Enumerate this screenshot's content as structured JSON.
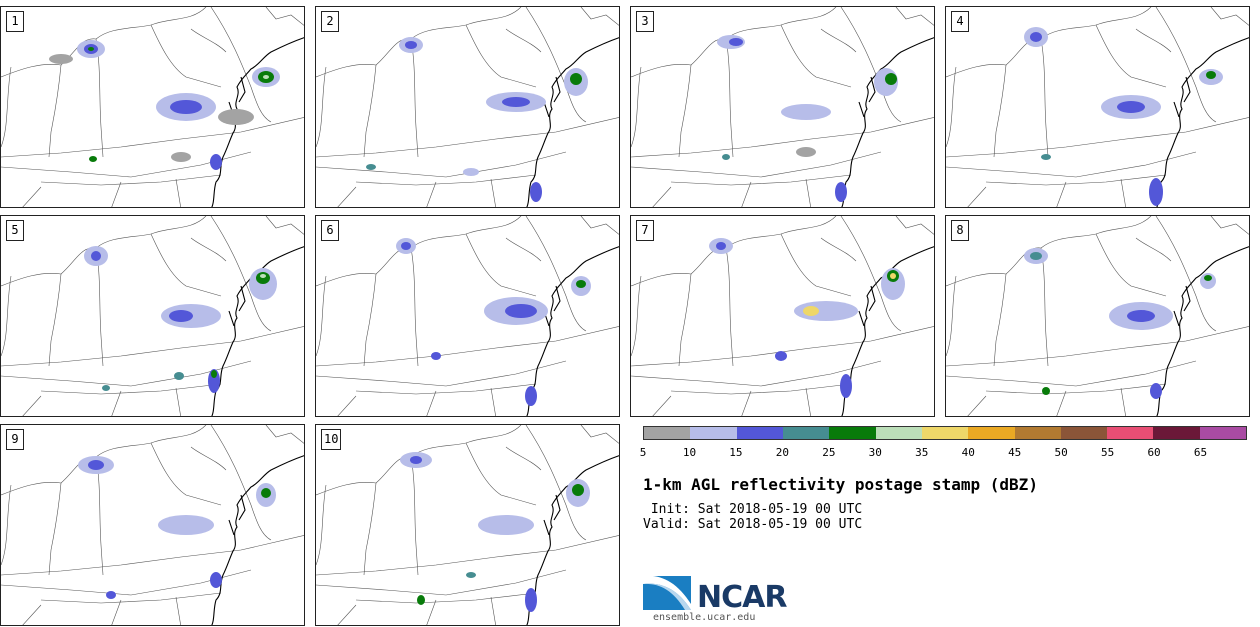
{
  "panels": [
    "1",
    "2",
    "3",
    "4",
    "5",
    "6",
    "7",
    "8",
    "9",
    "10"
  ],
  "colorbar": {
    "colors": [
      "#a3a3a3",
      "#b7bde9",
      "#5357d8",
      "#468d91",
      "#087b0a",
      "#bcdfb9",
      "#eed769",
      "#eaa924",
      "#b27a31",
      "#8b5538",
      "#e84e74",
      "#6b1838",
      "#a94ba3"
    ],
    "ticks": [
      "5",
      "10",
      "15",
      "20",
      "25",
      "30",
      "35",
      "40",
      "45",
      "50",
      "55",
      "60",
      "65"
    ]
  },
  "title": "1-km AGL reflectivity postage stamp (dBZ)",
  "init": " Init: Sat 2018-05-19 00 UTC",
  "valid": "Valid: Sat 2018-05-19 00 UTC",
  "logo": {
    "word": "NCAR",
    "site": "ensemble.ucar.edu"
  }
}
